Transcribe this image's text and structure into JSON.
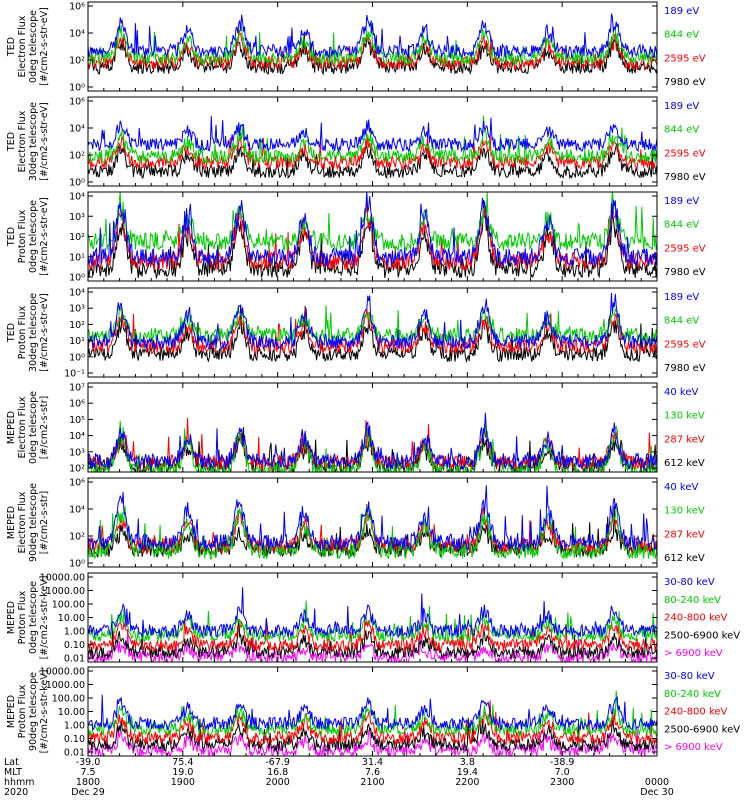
{
  "chart_data": {
    "type": "line",
    "title": "",
    "x_range_hours": [
      18.0,
      24.0
    ],
    "x_ticks": [
      {
        "hhmm": "1800",
        "lat": "-39.0",
        "mlt": "7.5"
      },
      {
        "hhmm": "1900",
        "lat": "75.4",
        "mlt": "19.0"
      },
      {
        "hhmm": "2000",
        "lat": "-67.9",
        "mlt": "16.8"
      },
      {
        "hhmm": "2100",
        "lat": "31.4",
        "mlt": "7.6"
      },
      {
        "hhmm": "2200",
        "lat": "3.8",
        "mlt": "19.4"
      },
      {
        "hhmm": "2300",
        "lat": "-38.9",
        "mlt": "7.0"
      },
      {
        "hhmm": "0000",
        "lat": "",
        "mlt": ""
      }
    ],
    "x_row_labels": [
      "Lat",
      "MLT",
      "hhmm",
      "2020"
    ],
    "x_dates": [
      "Dec 29",
      "Dec 30"
    ],
    "passes_hours": [
      18.35,
      19.05,
      19.6,
      20.28,
      20.95,
      21.55,
      22.18,
      22.85,
      23.55
    ],
    "panels": [
      {
        "id": "ted-e-0",
        "ylabel": [
          "TED",
          "Electron Flux",
          "0deg telescope",
          "[#/cm2-s-str-eV]"
        ],
        "yticks": [
          "10⁶",
          "10⁴",
          "10²",
          "10⁰"
        ],
        "ymin_exp": 0,
        "ymax_exp": 6,
        "series": [
          {
            "name": "7980 eV",
            "color": "#000000",
            "base": 1.6,
            "peak": 3.1
          },
          {
            "name": "2595 eV",
            "color": "#ff0000",
            "base": 1.9,
            "peak": 3.5
          },
          {
            "name": "844 eV",
            "color": "#00cc00",
            "base": 2.2,
            "peak": 3.9
          },
          {
            "name": "189 eV",
            "color": "#0000ff",
            "base": 2.7,
            "peak": 4.6
          }
        ]
      },
      {
        "id": "ted-e-30",
        "ylabel": [
          "TED",
          "Electron Flux",
          "30deg telescope",
          "[#/cm2-s-str-eV]"
        ],
        "yticks": [
          "10⁶",
          "10⁴",
          "10²",
          "10⁰"
        ],
        "ymin_exp": 0,
        "ymax_exp": 6,
        "series": [
          {
            "name": "7980 eV",
            "color": "#000000",
            "base": 1.0,
            "peak": 2.4
          },
          {
            "name": "2595 eV",
            "color": "#ff0000",
            "base": 1.6,
            "peak": 2.9
          },
          {
            "name": "844 eV",
            "color": "#00cc00",
            "base": 2.0,
            "peak": 3.3
          },
          {
            "name": "189 eV",
            "color": "#0000ff",
            "base": 2.8,
            "peak": 4.0
          }
        ]
      },
      {
        "id": "ted-p-0",
        "ylabel": [
          "TED",
          "Proton Flux",
          "0deg telescope",
          "[#/cm2-s-str-eV]"
        ],
        "yticks": [
          "10⁴",
          "10³",
          "10²",
          "10¹",
          "10⁰"
        ],
        "ymin_exp": 0,
        "ymax_exp": 4.5,
        "series": [
          {
            "name": "7980 eV",
            "color": "#000000",
            "base": 0.6,
            "peak": 2.9
          },
          {
            "name": "2595 eV",
            "color": "#ff0000",
            "base": 1.0,
            "peak": 3.3
          },
          {
            "name": "844 eV",
            "color": "#00cc00",
            "base": 2.0,
            "peak": 3.5
          },
          {
            "name": "189 eV",
            "color": "#0000ff",
            "base": 1.2,
            "peak": 3.8
          }
        ]
      },
      {
        "id": "ted-p-30",
        "ylabel": [
          "TED",
          "Proton Flux",
          "30deg telescope",
          "[#/cm2-s-str-eV]"
        ],
        "yticks": [
          "10⁴",
          "10³",
          "10²",
          "10¹",
          "10⁰",
          "10⁻¹"
        ],
        "ymin_exp": -1,
        "ymax_exp": 4.5,
        "series": [
          {
            "name": "7980 eV",
            "color": "#000000",
            "base": 0.4,
            "peak": 2.2
          },
          {
            "name": "2595 eV",
            "color": "#ff0000",
            "base": 0.9,
            "peak": 2.6
          },
          {
            "name": "844 eV",
            "color": "#00cc00",
            "base": 1.6,
            "peak": 2.9
          },
          {
            "name": "189 eV",
            "color": "#0000ff",
            "base": 1.2,
            "peak": 3.4
          }
        ]
      },
      {
        "id": "meped-e-0",
        "ylabel": [
          "MEPED",
          "Electron Flux",
          "0deg telescope",
          "[#/cm2-s-str]"
        ],
        "yticks": [
          "10⁷",
          "10⁶",
          "10⁵",
          "10⁴",
          "10³",
          "10²"
        ],
        "ymin_exp": 2,
        "ymax_exp": 7,
        "series": [
          {
            "name": "612 keV",
            "color": "#000000",
            "base": 2.4,
            "peak": 3.6
          },
          {
            "name": "287 keV",
            "color": "#ff0000",
            "base": 2.5,
            "peak": 4.1
          },
          {
            "name": "130 keV",
            "color": "#00cc00",
            "base": 2.1,
            "peak": 4.0
          },
          {
            "name": "40 keV",
            "color": "#0000ff",
            "base": 2.6,
            "peak": 4.3
          }
        ]
      },
      {
        "id": "meped-e-90",
        "ylabel": [
          "MEPED",
          "Electron Flux",
          "90deg telescope",
          "[#/cm2-s-str]"
        ],
        "yticks": [
          "10⁶",
          "10⁴",
          "10²",
          "10⁰"
        ],
        "ymin_exp": 1,
        "ymax_exp": 6,
        "series": [
          {
            "name": "612 keV",
            "color": "#000000",
            "base": 2.0,
            "peak": 3.0
          },
          {
            "name": "287 keV",
            "color": "#ff0000",
            "base": 2.2,
            "peak": 3.8
          },
          {
            "name": "130 keV",
            "color": "#00cc00",
            "base": 1.9,
            "peak": 4.0
          },
          {
            "name": "40 keV",
            "color": "#0000ff",
            "base": 2.4,
            "peak": 4.6
          }
        ]
      },
      {
        "id": "meped-p-0",
        "ylabel": [
          "MEPED",
          "Proton Flux",
          "0deg telescope",
          "[#/cm2-s-str-keV]"
        ],
        "yticks": [
          "10000.00",
          "1000.00",
          "100.00",
          "10.00",
          "1.00",
          "0.10",
          "0.01"
        ],
        "ymin_exp": -2,
        "ymax_exp": 4.3,
        "series": [
          {
            "name": "> 6900 keV",
            "color": "#ff00ff",
            "base": -1.6,
            "peak": -0.9
          },
          {
            "name": "2500-6900 keV",
            "color": "#000000",
            "base": -1.3,
            "peak": -0.3
          },
          {
            "name": "240-800 keV",
            "color": "#ff0000",
            "base": -0.8,
            "peak": 0.6
          },
          {
            "name": "80-240 keV",
            "color": "#00cc00",
            "base": -0.1,
            "peak": 1.1
          },
          {
            "name": "30-80 keV",
            "color": "#0000ff",
            "base": 0.2,
            "peak": 1.6
          }
        ]
      },
      {
        "id": "meped-p-90",
        "ylabel": [
          "MEPED",
          "Proton Flux",
          "90deg telescope",
          "[#/cm2-s-str-keV]"
        ],
        "yticks": [
          "10000.00",
          "1000.00",
          "100.00",
          "10.00",
          "1.00",
          "0.10",
          "0.01"
        ],
        "ymin_exp": -2,
        "ymax_exp": 4.3,
        "series": [
          {
            "name": "> 6900 keV",
            "color": "#ff00ff",
            "base": -1.6,
            "peak": -0.7
          },
          {
            "name": "2500-6900 keV",
            "color": "#000000",
            "base": -1.2,
            "peak": 0.0
          },
          {
            "name": "240-800 keV",
            "color": "#ff0000",
            "base": -0.7,
            "peak": 0.8
          },
          {
            "name": "80-240 keV",
            "color": "#00cc00",
            "base": -0.1,
            "peak": 1.2
          },
          {
            "name": "30-80 keV",
            "color": "#0000ff",
            "base": 0.3,
            "peak": 1.8
          }
        ]
      }
    ]
  }
}
